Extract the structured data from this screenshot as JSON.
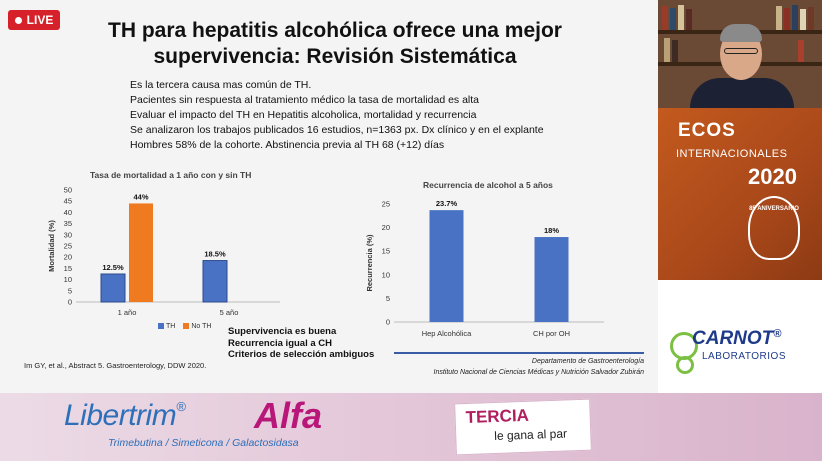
{
  "live_badge": "LIVE",
  "slide": {
    "title_line1": "TH para hepatitis alcohólica ofrece una mejor",
    "title_line2": "supervivencia: Revisión Sistemática",
    "bullets": [
      "Es la tercera causa mas común de TH.",
      "Pacientes sin respuesta al tratamiento médico la tasa de mortalidad es alta",
      "Evaluar el impacto del TH en Hepatitis alcoholica, mortalidad y recurrencia",
      "Se analizaron los trabajos publicados 16 estudios, n=1363 px. Dx clínico y en el explante",
      "Hombres 58% de la cohorte. Abstinencia previa al TH 68 (+12) días"
    ],
    "conclusions": [
      "Supervivencia es buena",
      "Recurrencia igual a CH",
      "Criterios de selección ambiguos"
    ],
    "citation": "Im GY, et al., Abstract 5. Gastroenterology, DDW 2020.",
    "dept_line1": "Departamento de Gastroenterología",
    "dept_line2": "Instituto Nacional de Ciencias Médicas y Nutrición Salvador Zubirán"
  },
  "chart_data": [
    {
      "type": "bar",
      "title": "Tasa de mortalidad a 1 año con y sin TH",
      "ylabel": "Mortalidad (%)",
      "categories": [
        "1 año",
        "5 año"
      ],
      "series": [
        {
          "name": "TH",
          "values": [
            12.5,
            18.5
          ],
          "labels": [
            "12.5%",
            "18.5%"
          ],
          "color": "#4a72c4"
        },
        {
          "name": "No TH",
          "values": [
            44,
            null
          ],
          "labels": [
            "44%",
            ""
          ],
          "color": "#f07a20"
        }
      ],
      "ylim": [
        0,
        50
      ],
      "yticks": [
        0,
        5,
        10,
        15,
        20,
        25,
        30,
        35,
        40,
        45,
        50
      ],
      "legend": "bottom"
    },
    {
      "type": "bar",
      "title": "Recurrencia de alcohol a 5 años",
      "ylabel": "Recurrencia (%)",
      "categories": [
        "Hep Alcohólica",
        "CH por OH"
      ],
      "values": [
        23.7,
        18
      ],
      "labels": [
        "23.7%",
        "18%"
      ],
      "color": "#4a72c4",
      "ylim": [
        0,
        25
      ],
      "yticks": [
        0,
        5,
        10,
        15,
        20,
        25
      ]
    }
  ],
  "side": {
    "ecos_title": "ECOS",
    "ecos_sub": "INTERNACIONALES",
    "ecos_year": "2020",
    "seal_text": "85 ANIVERSARIO",
    "carnot_brand": "CARNOT",
    "carnot_reg": "®",
    "carnot_sub": "LABORATORIOS"
  },
  "banner": {
    "brand": "Libertrim",
    "brand_reg": "®",
    "brand_alfa": "Alfa",
    "brand_sub": "Trimebutina / Simeticona / Galactosidasa",
    "tercia": "TERCIA",
    "tercia_sub": "le gana al par"
  }
}
